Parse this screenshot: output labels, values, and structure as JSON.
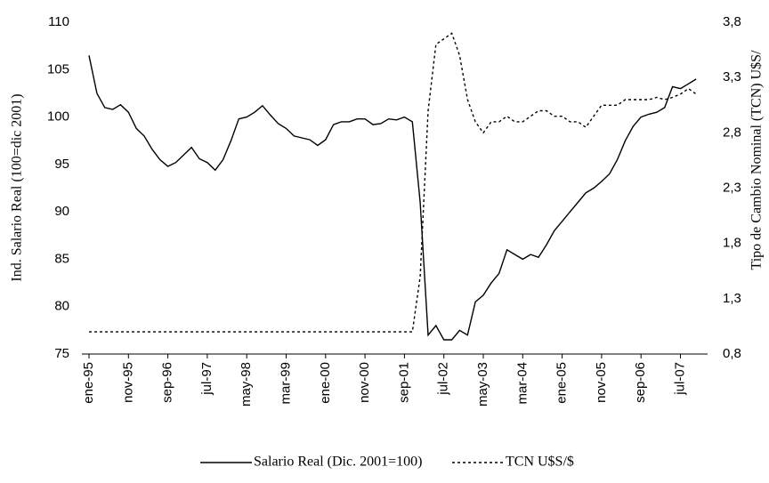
{
  "chart_data": {
    "type": "line",
    "y_label": "Ind. Salario Real (100=dic 2001)",
    "y2_label": "Tipo de Cambio Nominal (TCN) U$S/",
    "categories": [
      "ene-95",
      null,
      null,
      null,
      null,
      "nov-95",
      null,
      null,
      null,
      null,
      "sep-96",
      null,
      null,
      null,
      null,
      "jul-97",
      null,
      null,
      null,
      null,
      "may-98",
      null,
      null,
      null,
      null,
      "mar-99",
      null,
      null,
      null,
      null,
      "ene-00",
      null,
      null,
      null,
      null,
      "nov-00",
      null,
      null,
      null,
      null,
      "sep-01",
      null,
      null,
      null,
      null,
      "jul-02",
      null,
      null,
      null,
      null,
      "may-03",
      null,
      null,
      null,
      null,
      "mar-04",
      null,
      null,
      null,
      null,
      "ene-05",
      null,
      null,
      null,
      null,
      "nov-05",
      null,
      null,
      null,
      null,
      "sep-06",
      null,
      null,
      null,
      null,
      "jul-07",
      null,
      null
    ],
    "series": [
      {
        "name": "Salario Real (Dic. 2001=100)",
        "color": "#000000",
        "style": "solid",
        "values": [
          106.5,
          102.5,
          101,
          100.8,
          101.3,
          100.5,
          98.8,
          98,
          96.6,
          95.5,
          94.8,
          95.2,
          96,
          96.8,
          95.6,
          95.2,
          94.4,
          95.5,
          97.5,
          99.8,
          100,
          100.5,
          101.2,
          100.2,
          99.3,
          98.8,
          98,
          97.8,
          97.6,
          97,
          97.6,
          99.2,
          99.5,
          99.5,
          99.8,
          99.8,
          99.2,
          99.3,
          99.8,
          99.7,
          100,
          99.5,
          91,
          77,
          78,
          76.5,
          76.5,
          77.5,
          77,
          80.5,
          81.2,
          82.5,
          83.5,
          86,
          85.5,
          85,
          85.5,
          85.2,
          86.5,
          88,
          89,
          90,
          91,
          92,
          92.5,
          93.2,
          94,
          95.5,
          97.5,
          99,
          100,
          100.3,
          100.5,
          101,
          103.2,
          103,
          103.5,
          104
        ]
      },
      {
        "name": "TCN U$S/$",
        "color": "#000000",
        "style": "dotted",
        "axis": "y2",
        "values": [
          1,
          1,
          1,
          1,
          1,
          1,
          1,
          1,
          1,
          1,
          1,
          1,
          1,
          1,
          1,
          1,
          1,
          1,
          1,
          1,
          1,
          1,
          1,
          1,
          1,
          1,
          1,
          1,
          1,
          1,
          1,
          1,
          1,
          1,
          1,
          1,
          1,
          1,
          1,
          1,
          1,
          1,
          1.5,
          3.0,
          3.6,
          3.65,
          3.7,
          3.5,
          3.1,
          2.9,
          2.8,
          2.9,
          2.9,
          2.95,
          2.9,
          2.9,
          2.95,
          3.0,
          3.0,
          2.95,
          2.95,
          2.9,
          2.9,
          2.85,
          2.95,
          3.05,
          3.05,
          3.05,
          3.1,
          3.1,
          3.1,
          3.1,
          3.12,
          3.1,
          3.12,
          3.15,
          3.2,
          3.15
        ]
      }
    ],
    "ylim": [
      75,
      110
    ],
    "yticks": [
      75,
      80,
      85,
      90,
      95,
      100,
      105,
      110
    ],
    "y2lim": [
      0.8,
      3.8
    ],
    "y2ticks": [
      {
        "value": 0.8,
        "label": "0,8"
      },
      {
        "value": 1.3,
        "label": "1,3"
      },
      {
        "value": 1.8,
        "label": "1,8"
      },
      {
        "value": 2.3,
        "label": "2,3"
      },
      {
        "value": 2.8,
        "label": "2,8"
      },
      {
        "value": 3.3,
        "label": "3,3"
      },
      {
        "value": 3.8,
        "label": "3,8"
      }
    ],
    "legend": "bottom"
  }
}
